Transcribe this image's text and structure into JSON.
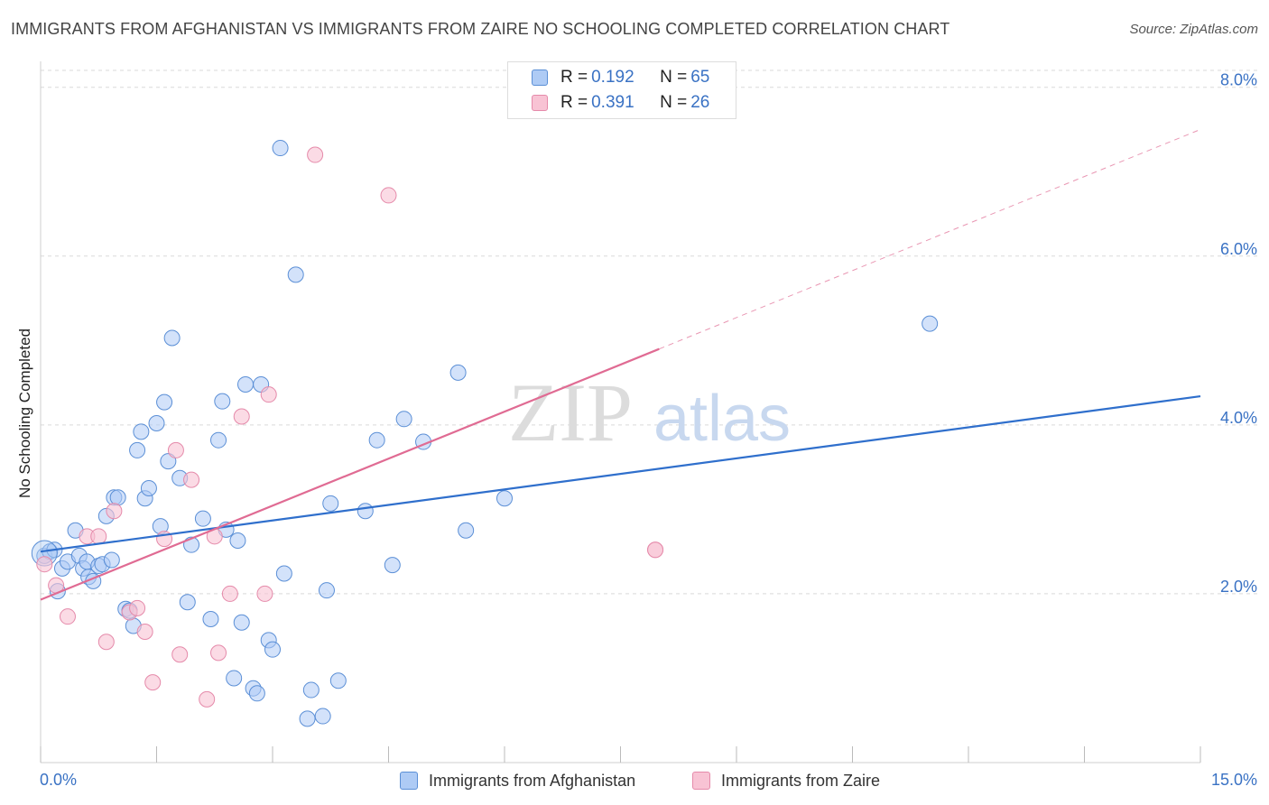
{
  "title": "IMMIGRANTS FROM AFGHANISTAN VS IMMIGRANTS FROM ZAIRE NO SCHOOLING COMPLETED CORRELATION CHART",
  "source": "Source: ZipAtlas.com",
  "watermark": {
    "zip": "ZIP",
    "atlas": "atlas"
  },
  "legend_top": {
    "rows": [
      {
        "r_label": "R = ",
        "r_value": "0.192",
        "n_label": "N = ",
        "n_value": "65"
      },
      {
        "r_label": "R = ",
        "r_value": "0.391",
        "n_label": "N = ",
        "n_value": "26"
      }
    ]
  },
  "legend_bottom": [
    {
      "label": "Immigrants from Afghanistan"
    },
    {
      "label": "Immigrants from Zaire"
    }
  ],
  "colors": {
    "blue_fill": "#aecbf5",
    "blue_stroke": "#5b8fd6",
    "blue_line": "#2f6fcc",
    "pink_fill": "#f8c3d4",
    "pink_stroke": "#e58aaa",
    "pink_line": "#e06b93",
    "tick_text": "#3a72c4",
    "grid": "#d9d9d9"
  },
  "chart_data": {
    "type": "scatter",
    "title": "IMMIGRANTS FROM AFGHANISTAN VS IMMIGRANTS FROM ZAIRE NO SCHOOLING COMPLETED CORRELATION CHART",
    "xlabel": "",
    "ylabel": "No Schooling Completed",
    "xlim": [
      0,
      15
    ],
    "ylim": [
      0,
      8.2
    ],
    "x_tick_labels": [
      {
        "value": 0,
        "label": "0.0%"
      },
      {
        "value": 15,
        "label": "15.0%"
      }
    ],
    "y_tick_labels": [
      {
        "value": 2,
        "label": "2.0%"
      },
      {
        "value": 4,
        "label": "4.0%"
      },
      {
        "value": 6,
        "label": "6.0%"
      },
      {
        "value": 8,
        "label": "8.0%"
      }
    ],
    "series": [
      {
        "name": "Immigrants from Afghanistan",
        "R": 0.192,
        "N": 65,
        "trend": {
          "x": [
            0,
            15
          ],
          "y": [
            2.5,
            4.34
          ]
        },
        "points": [
          [
            0.05,
            2.45
          ],
          [
            0.12,
            2.5
          ],
          [
            0.18,
            2.52
          ],
          [
            0.22,
            2.03
          ],
          [
            0.28,
            2.3
          ],
          [
            0.35,
            2.38
          ],
          [
            0.45,
            2.75
          ],
          [
            0.5,
            2.45
          ],
          [
            0.55,
            2.3
          ],
          [
            0.6,
            2.38
          ],
          [
            0.62,
            2.2
          ],
          [
            0.68,
            2.15
          ],
          [
            0.75,
            2.33
          ],
          [
            0.8,
            2.35
          ],
          [
            0.85,
            2.92
          ],
          [
            0.92,
            2.4
          ],
          [
            0.95,
            3.14
          ],
          [
            1.0,
            3.14
          ],
          [
            1.1,
            1.82
          ],
          [
            1.15,
            1.8
          ],
          [
            1.2,
            1.62
          ],
          [
            1.25,
            3.7
          ],
          [
            1.3,
            3.92
          ],
          [
            1.35,
            3.13
          ],
          [
            1.4,
            3.25
          ],
          [
            1.5,
            4.02
          ],
          [
            1.55,
            2.8
          ],
          [
            1.6,
            4.27
          ],
          [
            1.65,
            3.57
          ],
          [
            1.7,
            5.03
          ],
          [
            1.8,
            3.37
          ],
          [
            1.9,
            1.9
          ],
          [
            1.95,
            2.58
          ],
          [
            2.1,
            2.89
          ],
          [
            2.2,
            1.7
          ],
          [
            2.3,
            3.82
          ],
          [
            2.35,
            4.28
          ],
          [
            2.4,
            2.76
          ],
          [
            2.5,
            1.0
          ],
          [
            2.55,
            2.63
          ],
          [
            2.6,
            1.66
          ],
          [
            2.65,
            4.48
          ],
          [
            2.75,
            0.88
          ],
          [
            2.8,
            0.82
          ],
          [
            2.85,
            4.48
          ],
          [
            2.95,
            1.45
          ],
          [
            3.0,
            1.34
          ],
          [
            3.1,
            7.28
          ],
          [
            3.15,
            2.24
          ],
          [
            3.3,
            5.78
          ],
          [
            3.45,
            0.52
          ],
          [
            3.5,
            0.86
          ],
          [
            3.65,
            0.55
          ],
          [
            3.7,
            2.04
          ],
          [
            3.75,
            3.07
          ],
          [
            3.85,
            0.97
          ],
          [
            4.2,
            2.98
          ],
          [
            4.35,
            3.82
          ],
          [
            4.55,
            2.34
          ],
          [
            4.7,
            4.07
          ],
          [
            4.95,
            3.8
          ],
          [
            5.4,
            4.62
          ],
          [
            5.5,
            2.75
          ],
          [
            6.0,
            3.13
          ],
          [
            11.5,
            5.2
          ]
        ]
      },
      {
        "name": "Immigrants from Zaire",
        "R": 0.391,
        "N": 26,
        "trend": {
          "x": [
            0,
            8.0
          ],
          "y": [
            1.93,
            4.9
          ]
        },
        "trend_extension": {
          "x": [
            8.0,
            15
          ],
          "y": [
            4.9,
            7.5
          ]
        },
        "points": [
          [
            0.05,
            2.35
          ],
          [
            0.2,
            2.1
          ],
          [
            0.35,
            1.73
          ],
          [
            0.6,
            2.68
          ],
          [
            0.75,
            2.68
          ],
          [
            0.85,
            1.43
          ],
          [
            0.95,
            2.98
          ],
          [
            1.15,
            1.78
          ],
          [
            1.25,
            1.83
          ],
          [
            1.35,
            1.55
          ],
          [
            1.45,
            0.95
          ],
          [
            1.6,
            2.65
          ],
          [
            1.75,
            3.7
          ],
          [
            1.8,
            1.28
          ],
          [
            1.95,
            3.35
          ],
          [
            2.15,
            0.75
          ],
          [
            2.25,
            2.68
          ],
          [
            2.3,
            1.3
          ],
          [
            2.45,
            2.0
          ],
          [
            2.6,
            4.1
          ],
          [
            2.9,
            2.0
          ],
          [
            2.95,
            4.36
          ],
          [
            3.55,
            7.2
          ],
          [
            4.5,
            6.72
          ],
          [
            7.95,
            2.52
          ],
          [
            7.95,
            2.52
          ]
        ]
      }
    ]
  }
}
